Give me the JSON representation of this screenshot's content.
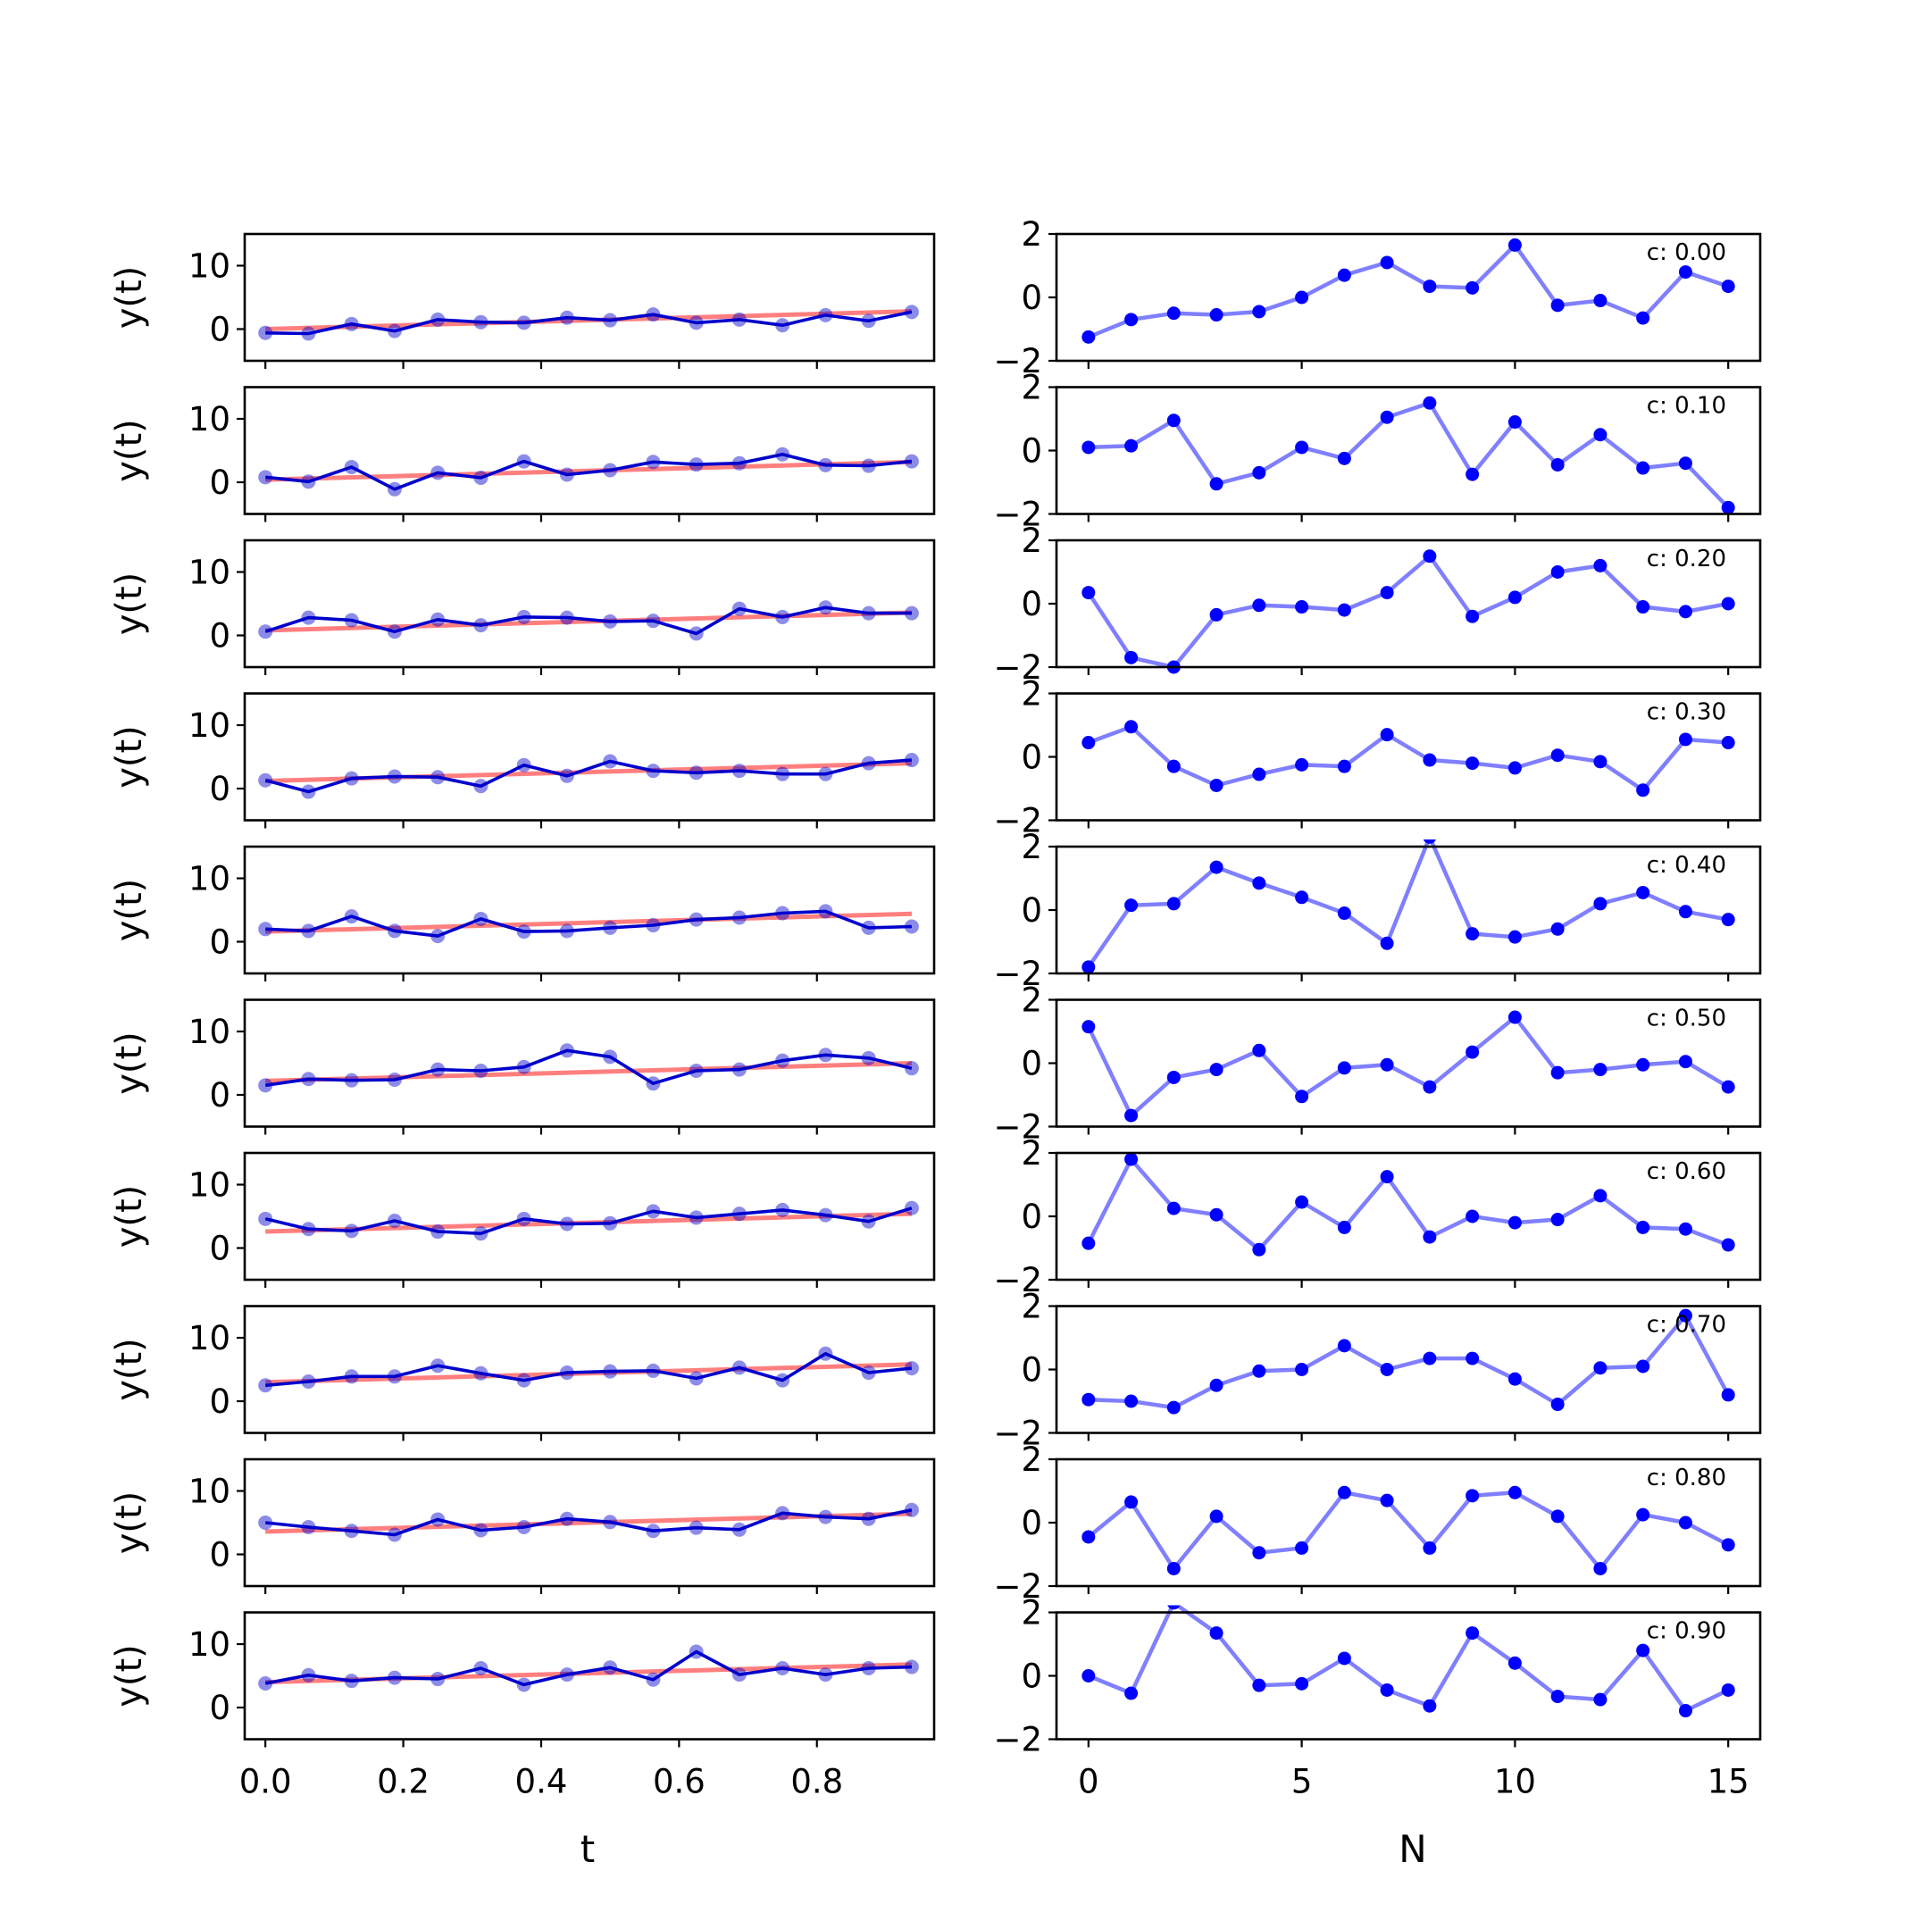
{
  "colors": {
    "observed": "#0000cc",
    "trend": "#ff0000",
    "noise": "#0000ff"
  },
  "chart_data": [
    {
      "type": "line",
      "panel": "left",
      "description": "observed y(t) vs t with linear trend, 10 stacked subplots",
      "xlabel": "t",
      "ylabel": "y(t)",
      "xlim": [
        -0.03,
        0.97
      ],
      "ylim": [
        -5,
        15
      ],
      "xticks": [
        0.0,
        0.2,
        0.4,
        0.6,
        0.8
      ],
      "xtick_labels": [
        "0.0",
        "0.2",
        "0.4",
        "0.6",
        "0.8"
      ],
      "yticks": [
        0,
        10
      ],
      "ytick_labels": [
        "0",
        "10"
      ],
      "x": [
        0,
        0.0625,
        0.125,
        0.1875,
        0.25,
        0.3125,
        0.375,
        0.4375,
        0.5,
        0.5625,
        0.625,
        0.6875,
        0.75,
        0.8125,
        0.875,
        0.9375
      ],
      "subplots": [
        {
          "c": 0.0,
          "y": [
            -0.6,
            -0.7,
            0.8,
            -0.3,
            1.5,
            1.1,
            1.0,
            1.8,
            1.4,
            2.3,
            1.0,
            1.5,
            0.6,
            2.2,
            1.3,
            2.7
          ],
          "trend": [
            0.0,
            2.8
          ]
        },
        {
          "c": 0.1,
          "y": [
            0.8,
            0.1,
            2.4,
            -1.1,
            1.5,
            0.7,
            3.3,
            1.2,
            1.9,
            3.2,
            2.8,
            3.0,
            4.4,
            2.7,
            2.6,
            3.3
          ],
          "trend": [
            0.4,
            3.2
          ]
        },
        {
          "c": 0.2,
          "y": [
            0.6,
            2.8,
            2.4,
            0.6,
            2.5,
            1.6,
            2.9,
            2.8,
            2.2,
            2.3,
            0.3,
            4.2,
            2.9,
            4.4,
            3.5,
            3.5
          ],
          "trend": [
            0.8,
            3.6
          ]
        },
        {
          "c": 0.3,
          "y": [
            1.3,
            -0.5,
            1.6,
            1.9,
            1.8,
            0.4,
            3.7,
            2.0,
            4.3,
            2.8,
            2.5,
            2.8,
            2.3,
            2.3,
            4.0,
            4.5
          ],
          "trend": [
            1.2,
            4.0
          ]
        },
        {
          "c": 0.4,
          "y": [
            2.0,
            1.7,
            4.0,
            1.7,
            0.9,
            3.6,
            1.6,
            1.7,
            2.2,
            2.6,
            3.5,
            3.8,
            4.5,
            4.8,
            2.2,
            2.4
          ],
          "trend": [
            1.6,
            4.4
          ]
        },
        {
          "c": 0.5,
          "y": [
            1.5,
            2.5,
            2.3,
            2.4,
            4.0,
            3.8,
            4.4,
            7.0,
            6.0,
            1.8,
            3.8,
            4.0,
            5.4,
            6.3,
            5.8,
            4.2
          ],
          "trend": [
            2.2,
            5.0
          ]
        },
        {
          "c": 0.6,
          "y": [
            4.6,
            3.0,
            2.7,
            4.3,
            2.6,
            2.3,
            4.6,
            3.8,
            3.9,
            5.8,
            4.8,
            5.4,
            6.0,
            5.2,
            4.2,
            6.3
          ],
          "trend": [
            2.6,
            5.4
          ]
        },
        {
          "c": 0.7,
          "y": [
            2.5,
            3.1,
            3.9,
            3.9,
            5.6,
            4.4,
            3.3,
            4.5,
            4.7,
            4.8,
            3.6,
            5.3,
            3.3,
            7.5,
            4.5,
            5.2
          ],
          "trend": [
            3.0,
            5.8
          ]
        },
        {
          "c": 0.8,
          "y": [
            5.0,
            4.3,
            3.7,
            3.1,
            5.5,
            3.8,
            4.3,
            5.6,
            5.1,
            3.7,
            4.2,
            3.9,
            6.5,
            5.9,
            5.6,
            7.0
          ],
          "trend": [
            3.6,
            6.4
          ]
        },
        {
          "c": 0.9,
          "y": [
            3.8,
            5.1,
            4.2,
            4.7,
            4.5,
            6.2,
            3.6,
            5.2,
            6.3,
            4.4,
            8.8,
            5.2,
            6.2,
            5.2,
            6.2,
            6.4
          ],
          "trend": [
            4.0,
            6.8
          ]
        }
      ]
    },
    {
      "type": "line",
      "panel": "right",
      "description": "noise vs N, 10 stacked subplots, each annotated with c value",
      "xlabel": "N",
      "ylim": [
        -2,
        2
      ],
      "xlim": [
        -0.75,
        15.75
      ],
      "xticks": [
        0,
        5,
        10,
        15
      ],
      "xtick_labels": [
        "0",
        "5",
        "10",
        "15"
      ],
      "yticks": [
        -2,
        0,
        2
      ],
      "ytick_labels": [
        "−2",
        "0",
        "2"
      ],
      "x": [
        0,
        1,
        2,
        3,
        4,
        5,
        6,
        7,
        8,
        9,
        10,
        11,
        12,
        13,
        14,
        15
      ],
      "subplots": [
        {
          "label": "c: 0.00",
          "y": [
            -1.25,
            -0.7,
            -0.5,
            -0.55,
            -0.45,
            0.0,
            0.7,
            1.1,
            0.35,
            0.3,
            1.65,
            -0.25,
            -0.1,
            -0.65,
            0.8,
            0.35
          ]
        },
        {
          "label": "c: 0.10",
          "y": [
            0.1,
            0.15,
            0.95,
            -1.05,
            -0.7,
            0.1,
            -0.25,
            1.05,
            1.5,
            -0.75,
            0.9,
            -0.45,
            0.5,
            -0.55,
            -0.4,
            -1.8
          ]
        },
        {
          "label": "c: 0.20",
          "y": [
            0.35,
            -1.7,
            -2.0,
            -0.35,
            -0.05,
            -0.1,
            -0.2,
            0.35,
            1.5,
            -0.4,
            0.2,
            1.0,
            1.2,
            -0.1,
            -0.25,
            0.0
          ]
        },
        {
          "label": "c: 0.30",
          "y": [
            0.45,
            0.95,
            -0.3,
            -0.9,
            -0.55,
            -0.25,
            -0.3,
            0.7,
            -0.1,
            -0.2,
            -0.35,
            0.05,
            -0.15,
            -1.05,
            0.55,
            0.45
          ]
        },
        {
          "label": "c: 0.40",
          "y": [
            -1.8,
            0.15,
            0.2,
            1.35,
            0.85,
            0.4,
            -0.1,
            -1.05,
            2.3,
            -0.75,
            -0.85,
            -0.6,
            0.2,
            0.55,
            -0.05,
            -0.3
          ]
        },
        {
          "label": "c: 0.50",
          "y": [
            1.15,
            -1.65,
            -0.45,
            -0.2,
            0.4,
            -1.05,
            -0.15,
            -0.05,
            -0.75,
            0.35,
            1.45,
            -0.3,
            -0.2,
            -0.05,
            0.05,
            -0.75
          ]
        },
        {
          "label": "c: 0.60",
          "y": [
            -0.85,
            1.8,
            0.25,
            0.05,
            -1.05,
            0.45,
            -0.35,
            1.25,
            -0.65,
            0.0,
            -0.2,
            -0.1,
            0.65,
            -0.35,
            -0.4,
            -0.9
          ]
        },
        {
          "label": "c: 0.70",
          "y": [
            -0.95,
            -1.0,
            -1.2,
            -0.5,
            -0.05,
            0.0,
            0.75,
            0.0,
            0.35,
            0.35,
            -0.3,
            -1.1,
            0.05,
            0.1,
            1.7,
            -0.8
          ]
        },
        {
          "label": "c: 0.80",
          "y": [
            -0.45,
            0.65,
            -1.45,
            0.2,
            -0.95,
            -0.8,
            0.95,
            0.7,
            -0.8,
            0.85,
            0.95,
            0.2,
            -1.45,
            0.25,
            0.0,
            -0.7
          ]
        },
        {
          "label": "c: 0.90",
          "y": [
            0.0,
            -0.55,
            2.3,
            1.35,
            -0.3,
            -0.25,
            0.55,
            -0.45,
            -0.95,
            1.35,
            0.4,
            -0.65,
            -0.75,
            0.8,
            -1.1,
            -0.45
          ]
        }
      ]
    }
  ]
}
